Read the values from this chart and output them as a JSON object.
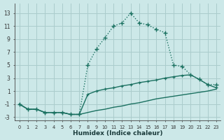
{
  "background_color": "#cce8e8",
  "grid_color": "#aacccc",
  "line_color": "#1a7060",
  "xlabel": "Humidex (Indice chaleur)",
  "xlim": [
    -0.5,
    23.5
  ],
  "ylim": [
    -3.5,
    14.5
  ],
  "xticks": [
    0,
    1,
    2,
    3,
    4,
    5,
    6,
    7,
    8,
    9,
    10,
    11,
    12,
    13,
    14,
    15,
    16,
    17,
    18,
    19,
    20,
    21,
    22,
    23
  ],
  "yticks": [
    -3,
    -1,
    1,
    3,
    5,
    7,
    9,
    11,
    13
  ],
  "line1_x": [
    0,
    1,
    2,
    3,
    4,
    5,
    6,
    7,
    8,
    9,
    10,
    11,
    12,
    13,
    14,
    15,
    16,
    17,
    18,
    19,
    20,
    21,
    22,
    23
  ],
  "line1_y": [
    -1.0,
    -1.8,
    -1.8,
    -2.3,
    -2.3,
    -2.3,
    -2.6,
    -2.6,
    -2.3,
    -2.0,
    -1.8,
    -1.5,
    -1.3,
    -1.0,
    -0.8,
    -0.5,
    -0.2,
    0.0,
    0.2,
    0.4,
    0.6,
    0.8,
    1.0,
    1.3
  ],
  "line2_x": [
    0,
    1,
    2,
    3,
    4,
    5,
    6,
    7,
    8,
    9,
    10,
    11,
    12,
    13,
    14,
    15,
    16,
    17,
    18,
    19,
    20,
    21,
    22,
    23
  ],
  "line2_y": [
    -1.0,
    -1.8,
    -1.8,
    -2.3,
    -2.3,
    -2.3,
    -2.6,
    -2.6,
    0.5,
    1.0,
    1.3,
    1.5,
    1.8,
    2.0,
    2.3,
    2.5,
    2.7,
    3.0,
    3.2,
    3.4,
    3.5,
    2.8,
    2.0,
    1.5
  ],
  "line3_x": [
    0,
    1,
    2,
    3,
    4,
    5,
    6,
    7,
    8,
    9,
    10,
    11,
    12,
    13,
    14,
    15,
    16,
    17,
    18,
    19,
    20,
    21,
    22,
    23
  ],
  "line3_y": [
    -1.0,
    -1.8,
    -1.8,
    -2.3,
    -2.3,
    -2.3,
    -2.6,
    -2.6,
    5.0,
    7.5,
    9.2,
    11.0,
    11.5,
    13.0,
    11.5,
    11.2,
    10.5,
    10.0,
    5.0,
    4.8,
    3.5,
    2.8,
    2.0,
    2.0
  ]
}
